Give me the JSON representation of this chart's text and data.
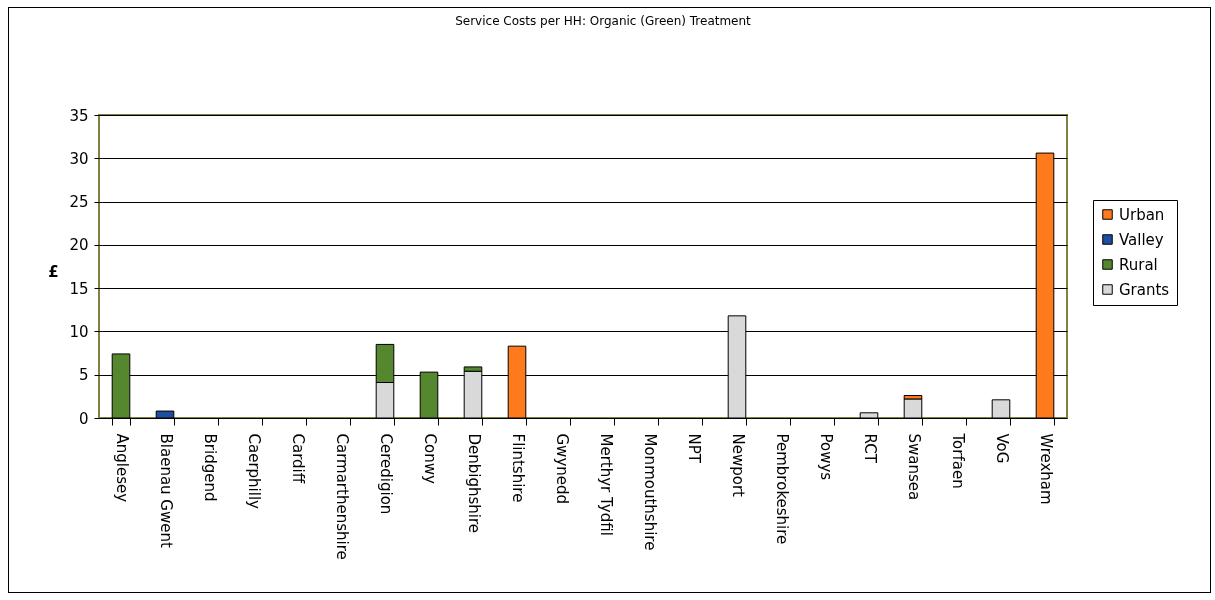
{
  "chart_data": {
    "type": "bar",
    "title": "Service Costs per HH: Organic (Green) Treatment",
    "ylabel": "£",
    "categories": [
      "Anglesey",
      "Blaenau Gwent",
      "Bridgend",
      "Caerphilly",
      "Cardiff",
      "Carmarthenshire",
      "Ceredigion",
      "Conwy",
      "Denbighshire",
      "Flintshire",
      "Gwynedd",
      "Merthyr Tydfil",
      "Monmouthshire",
      "NPT",
      "Newport",
      "Pembrokeshire",
      "Powys",
      "RCT",
      "Swansea",
      "Torfaen",
      "VoG",
      "Wrexham"
    ],
    "series": [
      {
        "name": "Grants",
        "color": "#d9d9d9",
        "values": [
          null,
          null,
          null,
          null,
          null,
          null,
          4.1,
          null,
          5.4,
          null,
          null,
          null,
          null,
          null,
          11.8,
          null,
          null,
          0.6,
          2.2,
          null,
          2.1,
          null
        ]
      },
      {
        "name": "Rural",
        "color": "#55872f",
        "values": [
          7.4,
          null,
          null,
          null,
          null,
          null,
          4.4,
          5.3,
          0.5,
          null,
          null,
          null,
          null,
          null,
          null,
          null,
          null,
          null,
          null,
          null,
          null,
          null
        ]
      },
      {
        "name": "Valley",
        "color": "#1f4ea0",
        "values": [
          null,
          0.8,
          null,
          null,
          null,
          null,
          null,
          null,
          null,
          null,
          null,
          null,
          null,
          null,
          null,
          null,
          null,
          null,
          null,
          null,
          null,
          null
        ]
      },
      {
        "name": "Urban",
        "color": "#ff7a1c",
        "values": [
          null,
          null,
          null,
          null,
          null,
          null,
          null,
          null,
          null,
          8.3,
          null,
          null,
          null,
          null,
          null,
          null,
          null,
          null,
          0.4,
          null,
          null,
          30.6
        ]
      }
    ],
    "stacked": true,
    "ylim": [
      0,
      35
    ],
    "yticks": [
      0,
      5,
      10,
      15,
      20,
      25,
      30,
      35
    ],
    "grid": "y",
    "legend": "right"
  }
}
